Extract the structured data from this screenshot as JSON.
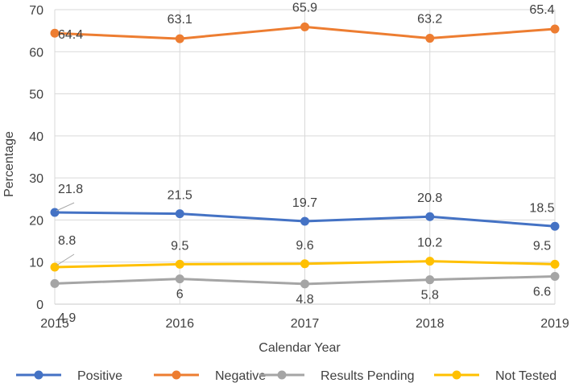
{
  "chart_data": {
    "type": "line",
    "x": [
      "2015",
      "2016",
      "2017",
      "2018",
      "2019"
    ],
    "xlabel": "Calendar Year",
    "ylabel": "Percentage",
    "ylim": [
      0,
      70
    ],
    "yticks": [
      0,
      10,
      20,
      30,
      40,
      50,
      60,
      70
    ],
    "grid": true,
    "legend_position": "bottom",
    "series": [
      {
        "name": "Positive",
        "color": "#4472C4",
        "values": [
          21.8,
          21.5,
          19.7,
          20.8,
          18.5
        ],
        "labels": [
          "21.8",
          "21.5",
          "19.7",
          "20.8",
          "18.5"
        ]
      },
      {
        "name": "Negative",
        "color": "#ED7D31",
        "values": [
          64.4,
          63.1,
          65.9,
          63.2,
          65.4
        ],
        "labels": [
          "64.4",
          "63.1",
          "65.9",
          "63.2",
          "65.4"
        ]
      },
      {
        "name": "Results Pending",
        "color": "#A5A5A5",
        "values": [
          4.9,
          6,
          4.8,
          5.8,
          6.6
        ],
        "labels": [
          "4.9",
          "6",
          "4.8",
          "5.8",
          "6.6"
        ]
      },
      {
        "name": "Not Tested",
        "color": "#FFC000",
        "values": [
          8.8,
          9.5,
          9.6,
          10.2,
          9.5
        ],
        "labels": [
          "8.8",
          "9.5",
          "9.6",
          "10.2",
          "9.5"
        ]
      }
    ]
  }
}
